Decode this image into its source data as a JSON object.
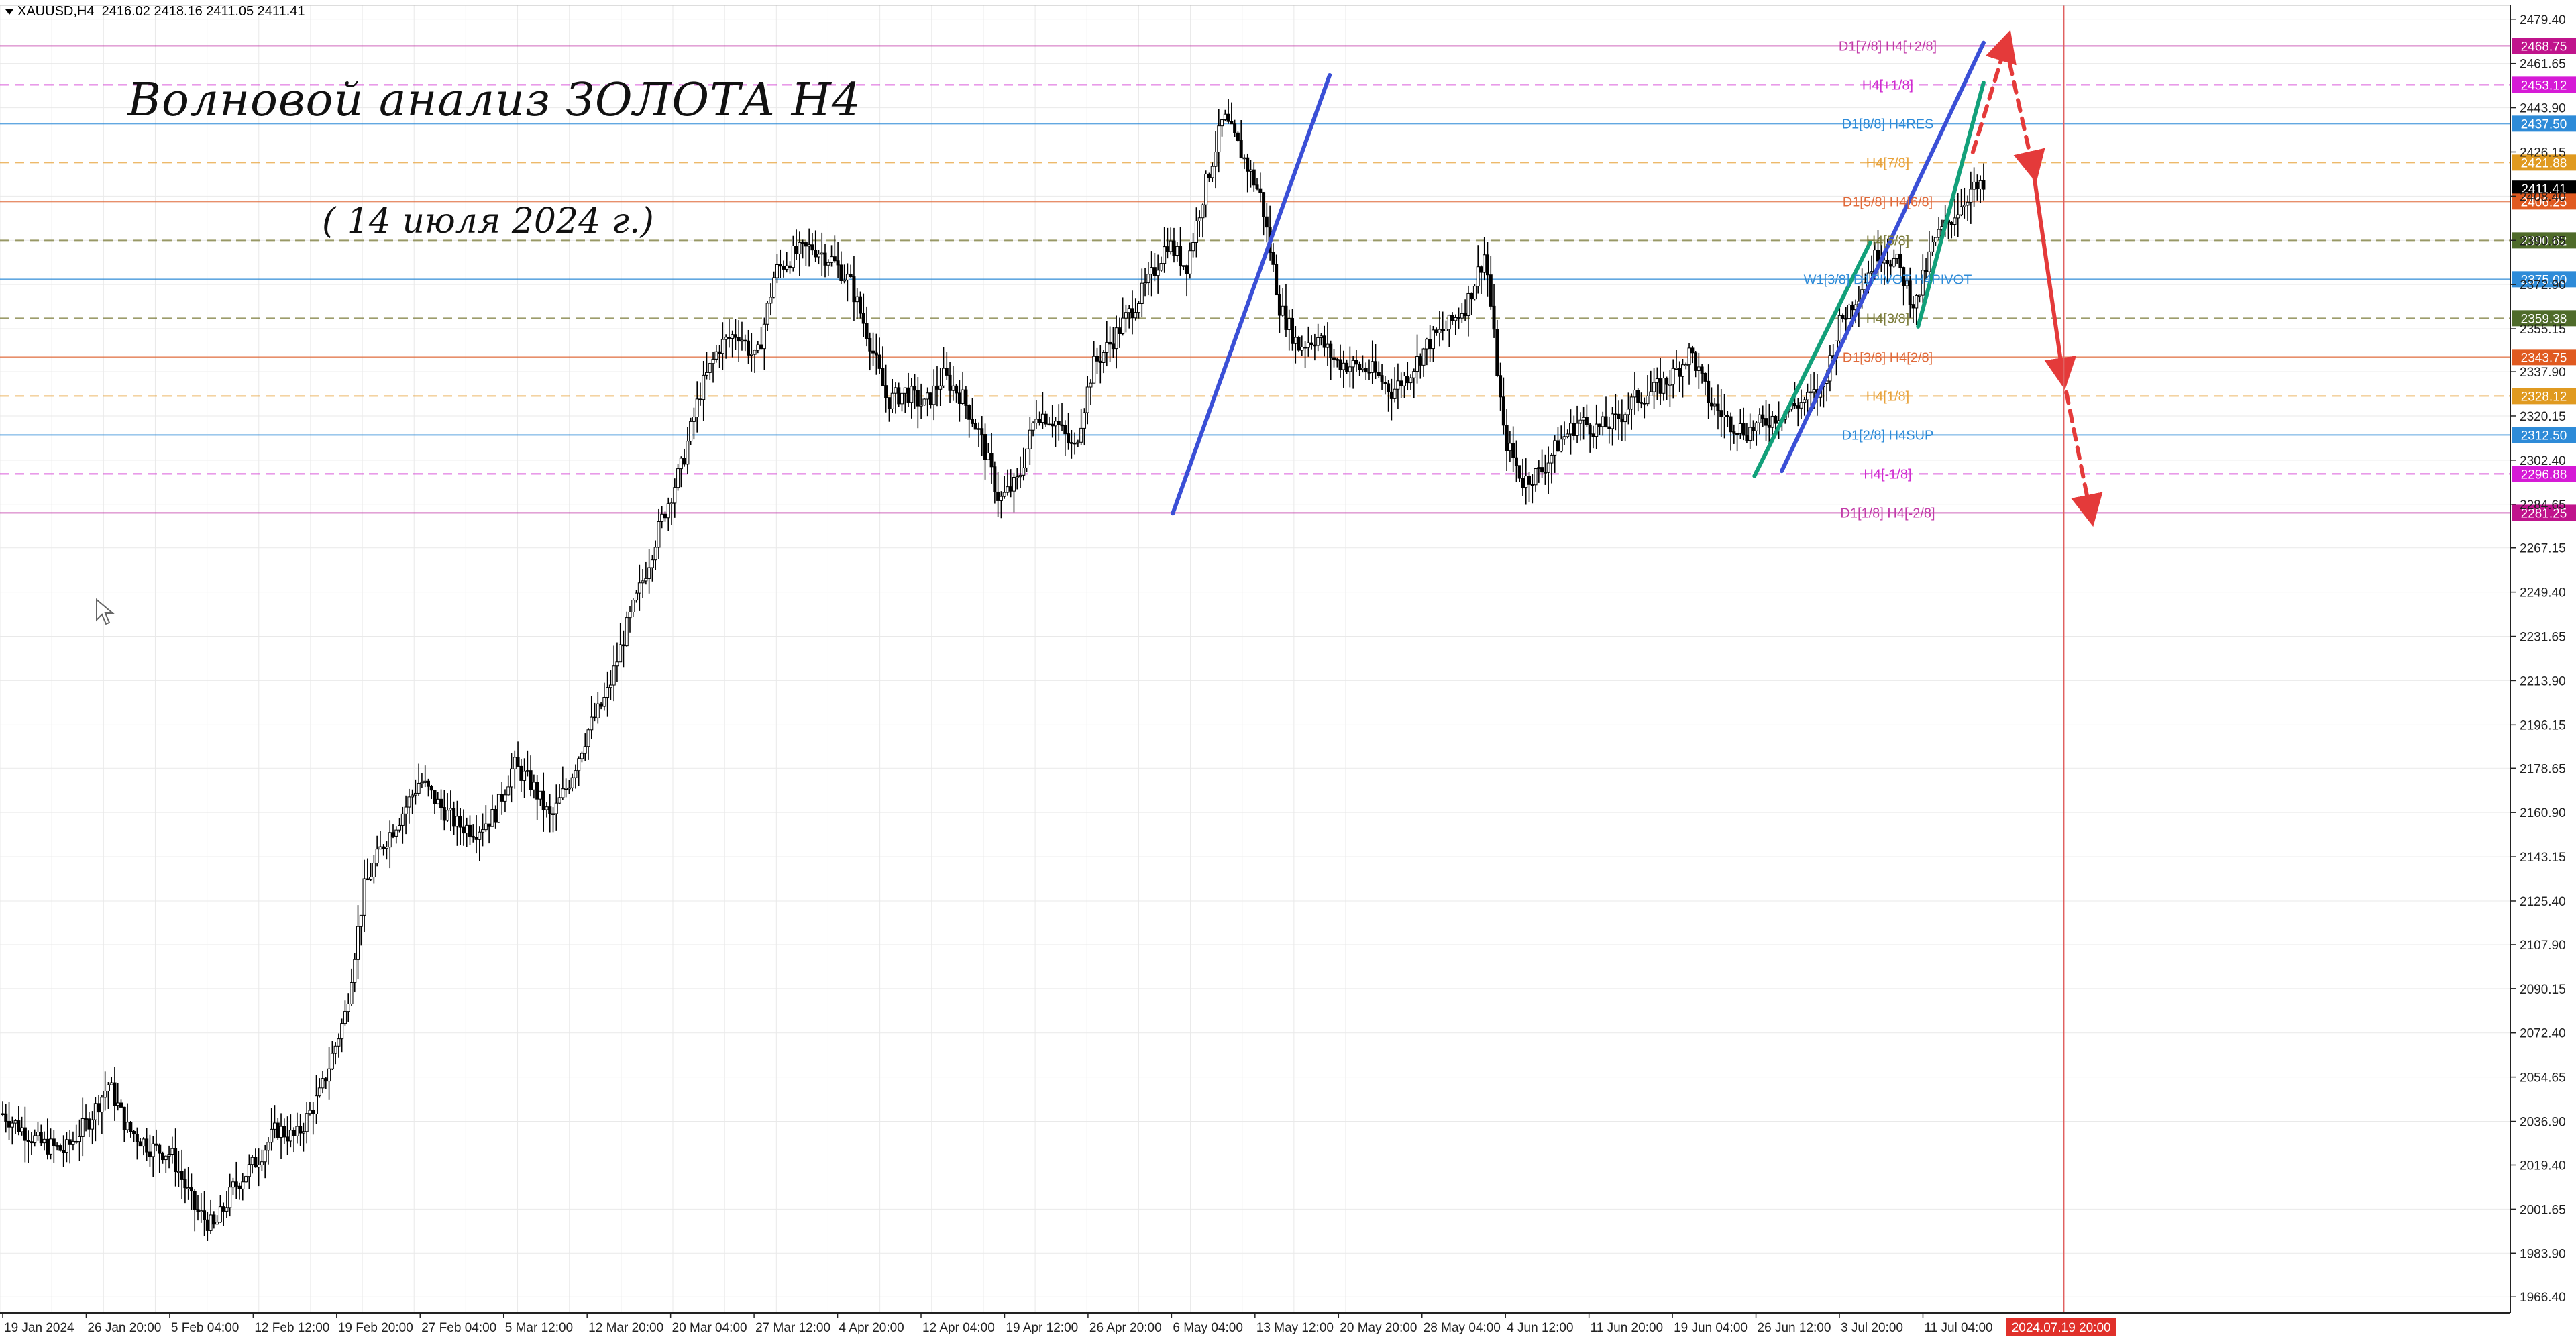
{
  "header": {
    "symbol": "XAUUSD,H4",
    "ohlc": "2416.02 2418.16 2411.05 2411.41"
  },
  "title": "Волновой анализ ЗОЛОТА H4",
  "subtitle": "( 14 июля 2024 г.)",
  "colors": {
    "background": "#ffffff",
    "grid": "#e9e9e9",
    "candle": "#000000",
    "trend_blue": "#3a4fd6",
    "trend_green": "#12a07a",
    "forecast_red": "#e43a3a"
  },
  "chart_data": {
    "type": "line",
    "title": "Волновой анализ ЗОЛОТА H4",
    "xlabel": "",
    "ylabel": "",
    "ylim": [
      1960,
      2485
    ],
    "grid": true,
    "x_ticks": [
      "19 Jan 2024",
      "26 Jan 20:00",
      "5 Feb 04:00",
      "12 Feb 12:00",
      "19 Feb 20:00",
      "27 Feb 04:00",
      "5 Mar 12:00",
      "12 Mar 20:00",
      "20 Mar 04:00",
      "27 Mar 12:00",
      "4 Apr 20:00",
      "12 Apr 04:00",
      "19 Apr 12:00",
      "26 Apr 20:00",
      "6 May 04:00",
      "13 May 12:00",
      "20 May 20:00",
      "28 May 04:00",
      "4 Jun 12:00",
      "11 Jun 20:00",
      "19 Jun 04:00",
      "26 Jun 12:00",
      "3 Jul 20:00",
      "11 Jul 04:00"
    ],
    "current_time_label": "2024.07.19 20:00",
    "y_ticks": [
      "2479.40",
      "2461.65",
      "2443.90",
      "2426.15",
      "2408.40",
      "2390.65",
      "2372.90",
      "2355.15",
      "2337.90",
      "2320.15",
      "2302.40",
      "2284.65",
      "2267.15",
      "2249.40",
      "2231.65",
      "2213.90",
      "2196.15",
      "2178.65",
      "2160.90",
      "2143.15",
      "2125.40",
      "2107.90",
      "2090.15",
      "2072.40",
      "2054.65",
      "2036.90",
      "2019.40",
      "2001.65",
      "1983.90",
      "1966.40"
    ],
    "price_path": [
      [
        0,
        2040
      ],
      [
        3,
        2034
      ],
      [
        6,
        2028
      ],
      [
        10,
        2025
      ],
      [
        14,
        2038
      ],
      [
        17,
        2052
      ],
      [
        20,
        2034
      ],
      [
        24,
        2026
      ],
      [
        27,
        2024
      ],
      [
        31,
        2001
      ],
      [
        34,
        1994
      ],
      [
        37,
        2010
      ],
      [
        41,
        2022
      ],
      [
        44,
        2034
      ],
      [
        47,
        2030
      ],
      [
        51,
        2048
      ],
      [
        55,
        2080
      ],
      [
        58,
        2130
      ],
      [
        61,
        2148
      ],
      [
        64,
        2160
      ],
      [
        67,
        2174
      ],
      [
        70,
        2164
      ],
      [
        73,
        2156
      ],
      [
        76,
        2154
      ],
      [
        79,
        2160
      ],
      [
        82,
        2180
      ],
      [
        85,
        2172
      ],
      [
        88,
        2158
      ],
      [
        91,
        2174
      ],
      [
        94,
        2194
      ],
      [
        97,
        2208
      ],
      [
        100,
        2234
      ],
      [
        103,
        2256
      ],
      [
        106,
        2280
      ],
      [
        109,
        2300
      ],
      [
        112,
        2330
      ],
      [
        115,
        2348
      ],
      [
        118,
        2354
      ],
      [
        121,
        2342
      ],
      [
        124,
        2378
      ],
      [
        127,
        2385
      ],
      [
        130,
        2388
      ],
      [
        133,
        2383
      ],
      [
        136,
        2374
      ],
      [
        139,
        2352
      ],
      [
        142,
        2326
      ],
      [
        145,
        2330
      ],
      [
        148,
        2324
      ],
      [
        151,
        2336
      ],
      [
        154,
        2328
      ],
      [
        157,
        2312
      ],
      [
        160,
        2286
      ],
      [
        163,
        2294
      ],
      [
        166,
        2322
      ],
      [
        169,
        2318
      ],
      [
        172,
        2306
      ],
      [
        175,
        2340
      ],
      [
        178,
        2350
      ],
      [
        181,
        2362
      ],
      [
        184,
        2374
      ],
      [
        187,
        2390
      ],
      [
        190,
        2380
      ],
      [
        193,
        2412
      ],
      [
        196,
        2440
      ],
      [
        199,
        2425
      ],
      [
        202,
        2408
      ],
      [
        205,
        2364
      ],
      [
        208,
        2348
      ],
      [
        211,
        2352
      ],
      [
        214,
        2342
      ],
      [
        217,
        2340
      ],
      [
        220,
        2338
      ],
      [
        223,
        2330
      ],
      [
        226,
        2338
      ],
      [
        229,
        2350
      ],
      [
        232,
        2356
      ],
      [
        235,
        2365
      ],
      [
        238,
        2386
      ],
      [
        241,
        2312
      ],
      [
        244,
        2294
      ],
      [
        247,
        2298
      ],
      [
        250,
        2310
      ],
      [
        253,
        2318
      ],
      [
        256,
        2315
      ],
      [
        259,
        2318
      ],
      [
        262,
        2327
      ],
      [
        265,
        2330
      ],
      [
        268,
        2336
      ],
      [
        271,
        2346
      ],
      [
        274,
        2326
      ],
      [
        277,
        2318
      ],
      [
        280,
        2314
      ],
      [
        283,
        2318
      ],
      [
        286,
        2322
      ],
      [
        289,
        2326
      ],
      [
        292,
        2330
      ],
      [
        295,
        2358
      ],
      [
        298,
        2370
      ],
      [
        301,
        2386
      ],
      [
        304,
        2382
      ],
      [
        307,
        2364
      ],
      [
        310,
        2390
      ],
      [
        313,
        2400
      ],
      [
        316,
        2411
      ],
      [
        318,
        2411
      ]
    ],
    "trend_lines_blue": [
      [
        [
          0.4672,
          2281
        ],
        [
          0.5297,
          2457
        ]
      ],
      [
        [
          0.7098,
          2298
        ],
        [
          0.7902,
          2470
        ]
      ]
    ],
    "trend_lines_green": [
      [
        [
          0.6989,
          2296
        ],
        [
          0.7451,
          2390
        ]
      ],
      [
        [
          0.7641,
          2356
        ],
        [
          0.7902,
          2454
        ]
      ]
    ],
    "forecast": {
      "dashed_up": [
        [
          0.7859,
          2426
        ],
        [
          0.799,
          2469
        ]
      ],
      "dashed_down": [
        [
          0.799,
          2469
        ],
        [
          0.8098,
          2420
        ]
      ],
      "solid_down": [
        [
          0.8098,
          2420
        ],
        [
          0.8217,
          2337
        ]
      ],
      "dashed_down2": [
        [
          0.8217,
          2337
        ],
        [
          0.8326,
          2282
        ]
      ]
    },
    "levels": [
      {
        "price": 2468.75,
        "label": "D1[7/8] H4[+2/8]",
        "color": "#c23aa8",
        "tag": "#c0148c",
        "style": "solid"
      },
      {
        "price": 2453.12,
        "label": "H4[+1/8]",
        "color": "#d02bd0",
        "tag": "#d61ad6",
        "style": "dashed"
      },
      {
        "price": 2437.5,
        "label": "D1[8/8] H4RES",
        "color": "#2e8bd8",
        "tag": "#2e8bd8",
        "style": "solid"
      },
      {
        "price": 2421.88,
        "label": "H4[7/8]",
        "color": "#e8a23a",
        "tag": "#e09a20",
        "style": "dashed"
      },
      {
        "price": 2411.41,
        "label": "",
        "color": "#000000",
        "tag": "#000000",
        "style": "none"
      },
      {
        "price": 2406.25,
        "label": "D1[5/8] H4[6/8]",
        "color": "#e06a3a",
        "tag": "#e05a20",
        "style": "solid"
      },
      {
        "price": 2390.62,
        "label": "H4[5/8]",
        "color": "#7b7b3a",
        "tag": "#4f6b2a",
        "style": "dashed"
      },
      {
        "price": 2375.0,
        "label": "W1[3/8] D1PIVOT H4PIVOT",
        "color": "#2e8bd8",
        "tag": "#2e8bd8",
        "style": "solid"
      },
      {
        "price": 2359.38,
        "label": "H4[3/8]",
        "color": "#7b7b3a",
        "tag": "#4f6b2a",
        "style": "dashed"
      },
      {
        "price": 2343.75,
        "label": "D1[3/8] H4[2/8]",
        "color": "#e06a3a",
        "tag": "#e05a20",
        "style": "solid"
      },
      {
        "price": 2328.12,
        "label": "H4[1/8]",
        "color": "#e8a23a",
        "tag": "#e09a20",
        "style": "dashed"
      },
      {
        "price": 2312.5,
        "label": "D1[2/8] H4SUP",
        "color": "#2e8bd8",
        "tag": "#2e8bd8",
        "style": "solid"
      },
      {
        "price": 2296.88,
        "label": "H4[-1/8]",
        "color": "#d02bd0",
        "tag": "#d61ad6",
        "style": "dashed"
      },
      {
        "price": 2281.25,
        "label": "D1[1/8] H4[-2/8]",
        "color": "#c23aa8",
        "tag": "#c0148c",
        "style": "solid"
      }
    ]
  }
}
